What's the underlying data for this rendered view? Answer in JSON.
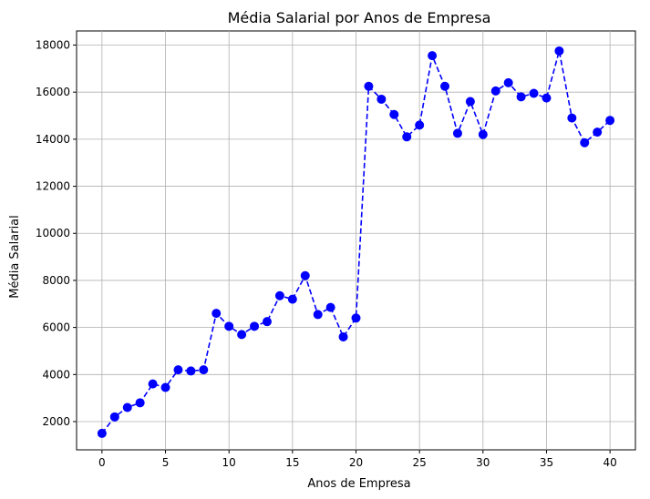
{
  "chart_data": {
    "type": "line",
    "title": "Média Salarial por Anos de Empresa",
    "xlabel": "Anos de Empresa",
    "ylabel": "Média Salarial",
    "xlim": [
      -2,
      42
    ],
    "ylim": [
      800,
      18600
    ],
    "xticks": [
      0,
      5,
      10,
      15,
      20,
      25,
      30,
      35,
      40
    ],
    "yticks": [
      2000,
      4000,
      6000,
      8000,
      10000,
      12000,
      14000,
      16000,
      18000
    ],
    "grid": true,
    "line_color": "#0000ff",
    "line_style": "dashed",
    "marker": "circle",
    "series": [
      {
        "x": [
          0,
          1,
          2,
          3,
          4,
          5,
          6,
          7,
          8,
          9,
          10,
          11,
          12,
          13,
          14,
          15,
          16,
          17,
          18,
          19,
          20,
          21,
          22,
          23,
          24,
          25,
          26,
          27,
          28,
          29,
          30,
          31,
          32,
          33,
          34,
          35,
          36,
          37,
          38,
          39,
          40
        ],
        "y": [
          1500,
          2200,
          2600,
          2800,
          3600,
          3450,
          4200,
          4150,
          4200,
          6600,
          6050,
          5700,
          6050,
          6250,
          7350,
          7200,
          8200,
          6550,
          6850,
          5600,
          6400,
          16250,
          15700,
          15050,
          14100,
          14600,
          17550,
          16250,
          14250,
          15600,
          14200,
          16050,
          16400,
          15800,
          15950,
          15750,
          17750,
          14900,
          13850,
          14300,
          14800
        ]
      }
    ]
  }
}
